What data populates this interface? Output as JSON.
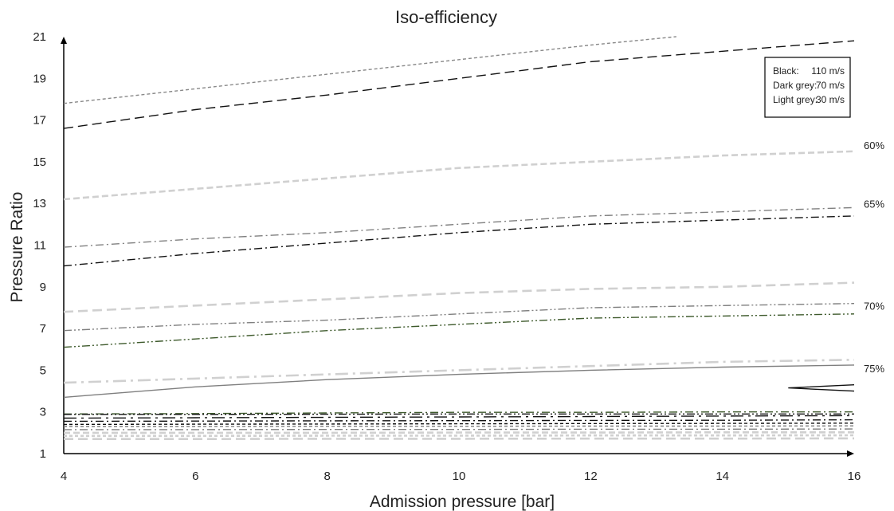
{
  "chart_data": {
    "type": "line",
    "title": "Iso-efficiency",
    "xlabel": "Admission pressure [bar]",
    "ylabel": "Pressure Ratio",
    "xlim": [
      4,
      16
    ],
    "ylim": [
      1,
      21
    ],
    "xticks": [
      "4",
      "6",
      "8",
      "10",
      "12",
      "14",
      "16"
    ],
    "yticks": [
      "1",
      "3",
      "5",
      "7",
      "9",
      "11",
      "13",
      "15",
      "17",
      "19",
      "21"
    ],
    "grid": false,
    "legend": {
      "placement": "top-right",
      "entries": [
        {
          "label": "Black:",
          "value": "110 m/s"
        },
        {
          "label": "Dark grey:",
          "value": "70 m/s"
        },
        {
          "label": "Light grey:",
          "value": "30 m/s"
        }
      ]
    },
    "efficiency_labels": [
      {
        "text": "60%",
        "y": 15.6
      },
      {
        "text": "65%",
        "y": 12.8
      },
      {
        "text": "70%",
        "y": 7.9
      },
      {
        "text": "75%",
        "y": 4.9
      }
    ],
    "colors": {
      "black": "#111111",
      "dark_grey": "#7f7f7f",
      "light_grey": "#d0d0d0",
      "dark_green": "#3e5a2c"
    },
    "series": [
      {
        "speed": "70 m/s",
        "efficiency": "<60%",
        "color": "#888888",
        "dash": "short",
        "x": [
          4,
          6,
          8,
          10,
          12,
          13.3
        ],
        "y": [
          17.8,
          18.5,
          19.2,
          19.9,
          20.6,
          21.0
        ]
      },
      {
        "speed": "110 m/s",
        "efficiency": "<60%",
        "color": "#111111",
        "dash": "long",
        "x": [
          4,
          6,
          8,
          10,
          12,
          14,
          16
        ],
        "y": [
          16.6,
          17.5,
          18.2,
          19.0,
          19.8,
          20.3,
          20.8
        ]
      },
      {
        "speed": "30 m/s",
        "efficiency": "60%",
        "color": "#d0d0d0",
        "dash": "medium",
        "x": [
          4,
          6,
          8,
          10,
          12,
          14,
          16
        ],
        "y": [
          13.2,
          13.7,
          14.2,
          14.7,
          15.0,
          15.3,
          15.5
        ]
      },
      {
        "speed": "70 m/s",
        "efficiency": "65%",
        "color": "#7f7f7f",
        "dash": "dashdot",
        "x": [
          4,
          6,
          8,
          10,
          12,
          14,
          16
        ],
        "y": [
          10.9,
          11.3,
          11.6,
          12.0,
          12.4,
          12.6,
          12.8
        ]
      },
      {
        "speed": "110 m/s",
        "efficiency": "65%",
        "color": "#111111",
        "dash": "dashdot",
        "x": [
          4,
          6,
          8,
          10,
          12,
          14,
          16
        ],
        "y": [
          10.0,
          10.6,
          11.1,
          11.6,
          12.0,
          12.2,
          12.4
        ]
      },
      {
        "speed": "30 m/s",
        "efficiency": "70%",
        "color": "#d0d0d0",
        "dash": "long",
        "x": [
          4,
          6,
          8,
          10,
          12,
          14,
          16
        ],
        "y": [
          7.8,
          8.1,
          8.4,
          8.7,
          8.9,
          9.0,
          9.2
        ]
      },
      {
        "speed": "70 m/s",
        "efficiency": "70%",
        "color": "#7f7f7f",
        "dash": "dashdotdot",
        "x": [
          4,
          6,
          8,
          10,
          12,
          14,
          16
        ],
        "y": [
          6.9,
          7.2,
          7.4,
          7.7,
          8.0,
          8.1,
          8.2
        ]
      },
      {
        "speed": "110 m/s",
        "efficiency": "70%",
        "color": "#3e5a2c",
        "dash": "dashdotdot",
        "x": [
          4,
          6,
          8,
          10,
          12,
          14,
          16
        ],
        "y": [
          6.1,
          6.5,
          6.9,
          7.2,
          7.5,
          7.6,
          7.7
        ]
      },
      {
        "speed": "30 m/s",
        "efficiency": "75%",
        "color": "#d0d0d0",
        "dash": "longdashdot",
        "x": [
          4,
          6,
          8,
          10,
          12,
          14,
          16
        ],
        "y": [
          4.4,
          4.6,
          4.8,
          5.0,
          5.2,
          5.4,
          5.5
        ]
      },
      {
        "speed": "70 m/s",
        "efficiency": "75%",
        "color": "#7f7f7f",
        "dash": "solid",
        "x": [
          4,
          6,
          8,
          10,
          12,
          14,
          16
        ],
        "y": [
          3.7,
          4.2,
          4.55,
          4.8,
          5.0,
          5.15,
          5.25
        ]
      },
      {
        "speed": "110 m/s",
        "efficiency": "75%",
        "color": "#111111",
        "dash": "solid",
        "x": [
          16,
          15.0,
          16
        ],
        "y": [
          4.3,
          4.15,
          4.0
        ]
      },
      {
        "speed": "70 m/s",
        "efficiency": "80%",
        "color": "#3e5a2c",
        "dash": "dashdot",
        "x": [
          4,
          6,
          8,
          10,
          12,
          14,
          16
        ],
        "y": [
          2.9,
          2.92,
          2.95,
          2.98,
          2.98,
          3.0,
          3.0
        ]
      },
      {
        "speed": "110 m/s",
        "efficiency": "80%",
        "color": "#111111",
        "dash": "dashdotdot",
        "x": [
          4,
          6,
          8,
          10,
          12,
          14,
          16
        ],
        "y": [
          2.88,
          2.88,
          2.89,
          2.9,
          2.9,
          2.9,
          2.9
        ]
      },
      {
        "speed": "110 m/s",
        "efficiency": "80%",
        "color": "#111111",
        "dash": "longdashdot",
        "x": [
          4,
          6,
          8,
          10,
          12,
          14,
          16
        ],
        "y": [
          2.7,
          2.72,
          2.74,
          2.76,
          2.78,
          2.8,
          2.82
        ]
      },
      {
        "speed": "110 m/s",
        "efficiency": "80%",
        "color": "#111111",
        "dash": "dashdot",
        "x": [
          4,
          6,
          8,
          10,
          12,
          14,
          16
        ],
        "y": [
          2.55,
          2.56,
          2.57,
          2.58,
          2.59,
          2.6,
          2.62
        ]
      },
      {
        "speed": "110 m/s",
        "efficiency": "80%",
        "color": "#111111",
        "dash": "short",
        "x": [
          4,
          6,
          8,
          10,
          12,
          14,
          16
        ],
        "y": [
          2.4,
          2.41,
          2.42,
          2.43,
          2.44,
          2.45,
          2.46
        ]
      },
      {
        "speed": "70 m/s",
        "efficiency": "80%",
        "color": "#7f7f7f",
        "dash": "short",
        "x": [
          4,
          6,
          8,
          10,
          12,
          14,
          16
        ],
        "y": [
          2.3,
          2.3,
          2.31,
          2.31,
          2.32,
          2.32,
          2.33
        ]
      },
      {
        "speed": "70 m/s",
        "efficiency": "80%",
        "color": "#7f7f7f",
        "dash": "dashdot",
        "x": [
          4,
          6,
          8,
          10,
          12,
          14,
          16
        ],
        "y": [
          2.15,
          2.15,
          2.16,
          2.16,
          2.17,
          2.17,
          2.18
        ]
      },
      {
        "speed": "30 m/s",
        "efficiency": "80%",
        "color": "#d0d0d0",
        "dash": "medium",
        "x": [
          4,
          6,
          8,
          10,
          12,
          14,
          16
        ],
        "y": [
          2.0,
          2.0,
          2.0,
          2.01,
          2.01,
          2.02,
          2.02
        ]
      },
      {
        "speed": "30 m/s",
        "efficiency": "80%",
        "color": "#d0d0d0",
        "dash": "short",
        "x": [
          4,
          6,
          8,
          10,
          12,
          14,
          16
        ],
        "y": [
          1.85,
          1.85,
          1.86,
          1.86,
          1.87,
          1.87,
          1.88
        ]
      },
      {
        "speed": "30 m/s",
        "efficiency": "80%",
        "color": "#d0d0d0",
        "dash": "long",
        "x": [
          4,
          6,
          8,
          10,
          12,
          14,
          16
        ],
        "y": [
          1.7,
          1.7,
          1.71,
          1.71,
          1.72,
          1.72,
          1.73
        ]
      }
    ]
  }
}
